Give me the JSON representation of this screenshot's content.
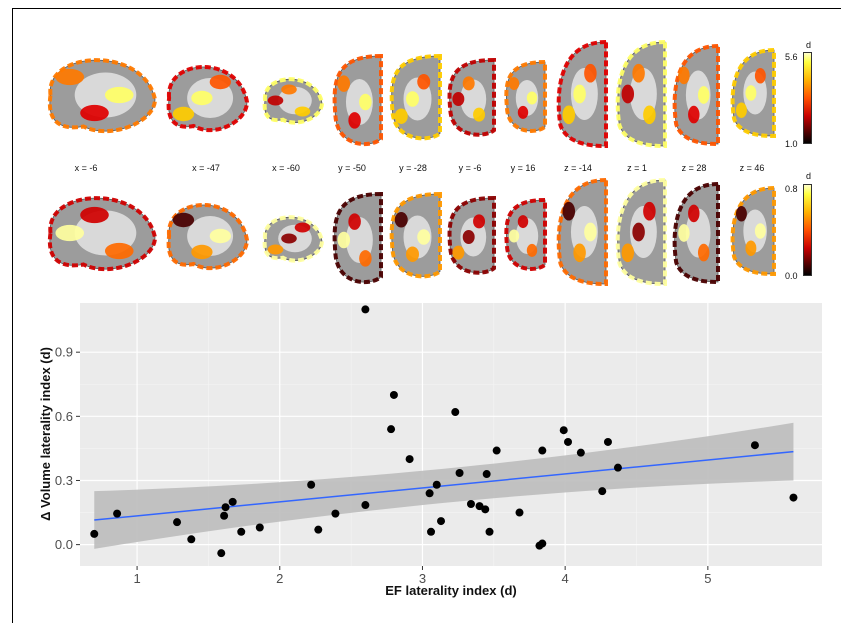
{
  "figure": {
    "colorbar_top": {
      "label": "d",
      "max": "5.6",
      "min": "1.0"
    },
    "colorbar_bottom": {
      "label": "d",
      "max": "0.8",
      "min": "0.0"
    },
    "slice_coords": [
      "x = -6",
      "x = -47",
      "x = -60",
      "y = -50",
      "y = -28",
      "y = -6",
      "y = 16",
      "z = -14",
      "z = 1",
      "z = 28",
      "z = 46"
    ]
  },
  "chart_data": {
    "type": "scatter",
    "xlabel": "EF laterality index (d)",
    "ylabel": "Δ Volume laterality index (d)",
    "xlim": [
      0.6,
      5.8
    ],
    "ylim": [
      -0.1,
      1.13
    ],
    "xticks": [
      "1",
      "2",
      "3",
      "4",
      "5"
    ],
    "yticks": [
      "0.0",
      "0.3",
      "0.6",
      "0.9"
    ],
    "grid": true,
    "fit_line": {
      "x": [
        0.7,
        5.6
      ],
      "y": [
        0.115,
        0.435
      ],
      "color": "#3366ff",
      "band_color": "#bdbdbd"
    },
    "points": [
      [
        0.7,
        0.05
      ],
      [
        0.86,
        0.145
      ],
      [
        1.28,
        0.105
      ],
      [
        1.38,
        0.025
      ],
      [
        1.59,
        -0.04
      ],
      [
        1.61,
        0.135
      ],
      [
        1.62,
        0.175
      ],
      [
        1.67,
        0.2
      ],
      [
        1.73,
        0.06
      ],
      [
        1.86,
        0.08
      ],
      [
        2.22,
        0.28
      ],
      [
        2.27,
        0.07
      ],
      [
        2.39,
        0.145
      ],
      [
        2.6,
        1.1
      ],
      [
        2.6,
        0.185
      ],
      [
        2.78,
        0.54
      ],
      [
        2.8,
        0.7
      ],
      [
        2.91,
        0.4
      ],
      [
        3.05,
        0.24
      ],
      [
        3.06,
        0.06
      ],
      [
        3.1,
        0.28
      ],
      [
        3.13,
        0.11
      ],
      [
        3.23,
        0.62
      ],
      [
        3.26,
        0.335
      ],
      [
        3.34,
        0.19
      ],
      [
        3.4,
        0.18
      ],
      [
        3.44,
        0.165
      ],
      [
        3.45,
        0.33
      ],
      [
        3.47,
        0.06
      ],
      [
        3.52,
        0.44
      ],
      [
        3.68,
        0.15
      ],
      [
        3.82,
        -0.005
      ],
      [
        3.84,
        0.005
      ],
      [
        3.84,
        0.44
      ],
      [
        3.99,
        0.535
      ],
      [
        4.02,
        0.48
      ],
      [
        4.11,
        0.43
      ],
      [
        4.26,
        0.25
      ],
      [
        4.3,
        0.48
      ],
      [
        4.37,
        0.36
      ],
      [
        5.33,
        0.465
      ],
      [
        5.6,
        0.22
      ]
    ],
    "point_color": "#000000"
  }
}
